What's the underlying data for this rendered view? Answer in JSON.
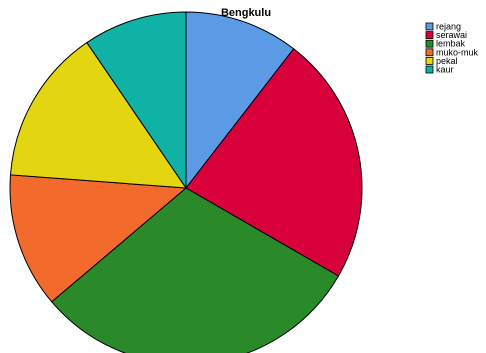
{
  "chart_data": {
    "type": "pie",
    "title": "Bengkulu",
    "legend_position": "top-right",
    "categories": [
      "rejang",
      "serawai",
      "lembak",
      "muko-muko",
      "pekal",
      "kaur"
    ],
    "legend_labels": [
      "rejang",
      "serawai",
      "lembak",
      "muko-muk",
      "pekal",
      "kaur"
    ],
    "values": [
      11,
      24,
      32,
      13,
      15,
      10
    ],
    "colors": [
      "#5b9be6",
      "#d8003a",
      "#2a8a2a",
      "#f26a2c",
      "#e3d510",
      "#11b2a6"
    ],
    "start_angle_deg": 0,
    "direction": "clockwise"
  }
}
